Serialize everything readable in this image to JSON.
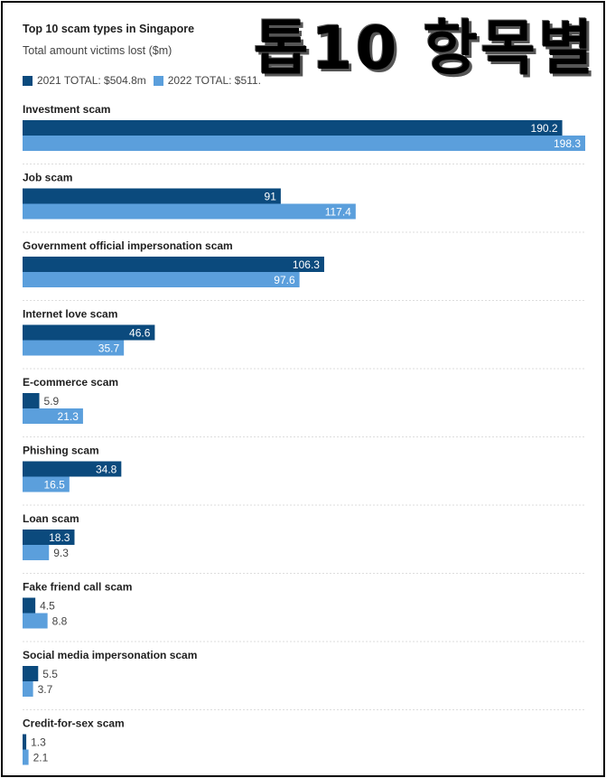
{
  "overlay_text": "톱10 항목별",
  "chart_data": {
    "type": "bar",
    "orientation": "horizontal",
    "title": "Top 10 scam types in Singapore",
    "subtitle": "Total amount victims lost ($m)",
    "categories": [
      "Investment scam",
      "Job scam",
      "Government official impersonation scam",
      "Internet love scam",
      "E-commerce scam",
      "Phishing scam",
      "Loan scam",
      "Fake friend call scam",
      "Social media impersonation scam",
      "Credit-for-sex scam"
    ],
    "series": [
      {
        "name": "2021 TOTAL: $504.8m",
        "color": "#0b4a7d",
        "values": [
          190.2,
          91,
          106.3,
          46.6,
          5.9,
          34.8,
          18.3,
          4.5,
          5.5,
          1.3
        ],
        "labels": [
          "190.2",
          "91",
          "106.3",
          "46.6",
          "5.9",
          "34.8",
          "18.3",
          "4.5",
          "5.5",
          "1.3"
        ]
      },
      {
        "name": "2022 TOTAL: $511.",
        "color": "#5b9fdc",
        "values": [
          198.3,
          117.4,
          97.6,
          35.7,
          21.3,
          16.5,
          9.3,
          8.8,
          3.7,
          2.1
        ],
        "labels": [
          "198.3",
          "117.4",
          "97.6",
          "35.7",
          "21.3",
          "16.5",
          "9.3",
          "8.8",
          "3.7",
          "2.1"
        ]
      }
    ],
    "xlim": [
      0,
      198.3
    ],
    "grid": false,
    "legend_position": "top-left"
  }
}
